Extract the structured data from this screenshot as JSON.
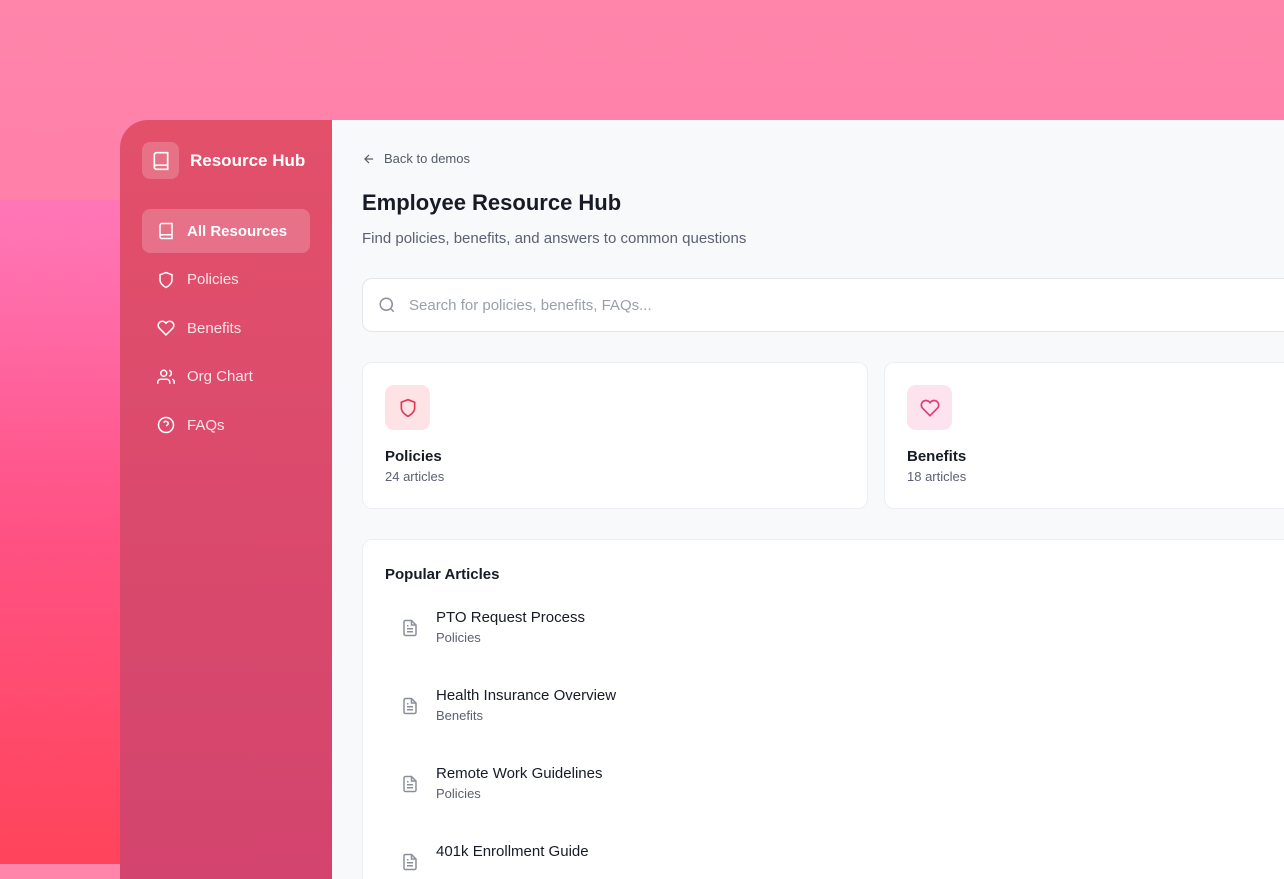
{
  "sidebar": {
    "brand": "Resource Hub",
    "items": [
      {
        "label": "All Resources",
        "icon": "book-icon",
        "active": true
      },
      {
        "label": "Policies",
        "icon": "shield-icon"
      },
      {
        "label": "Benefits",
        "icon": "heart-icon"
      },
      {
        "label": "Org Chart",
        "icon": "users-icon"
      },
      {
        "label": "FAQs",
        "icon": "help-circle-icon"
      }
    ]
  },
  "main": {
    "back": "Back to demos",
    "title": "Employee Resource Hub",
    "subtitle": "Find policies, benefits, and answers to common questions",
    "search_placeholder": "Search for policies, benefits, FAQs...",
    "cards": [
      {
        "title": "Policies",
        "count": "24 articles",
        "color": "#e23a55"
      },
      {
        "title": "Benefits",
        "count": "18 articles",
        "color": "#e23a74"
      }
    ],
    "popular": {
      "title": "Popular Articles",
      "articles": [
        {
          "title": "PTO Request Process",
          "category": "Policies"
        },
        {
          "title": "Health Insurance Overview",
          "category": "Benefits"
        },
        {
          "title": "Remote Work Guidelines",
          "category": "Policies"
        },
        {
          "title": "401k Enrollment Guide",
          "category": ""
        }
      ]
    }
  }
}
